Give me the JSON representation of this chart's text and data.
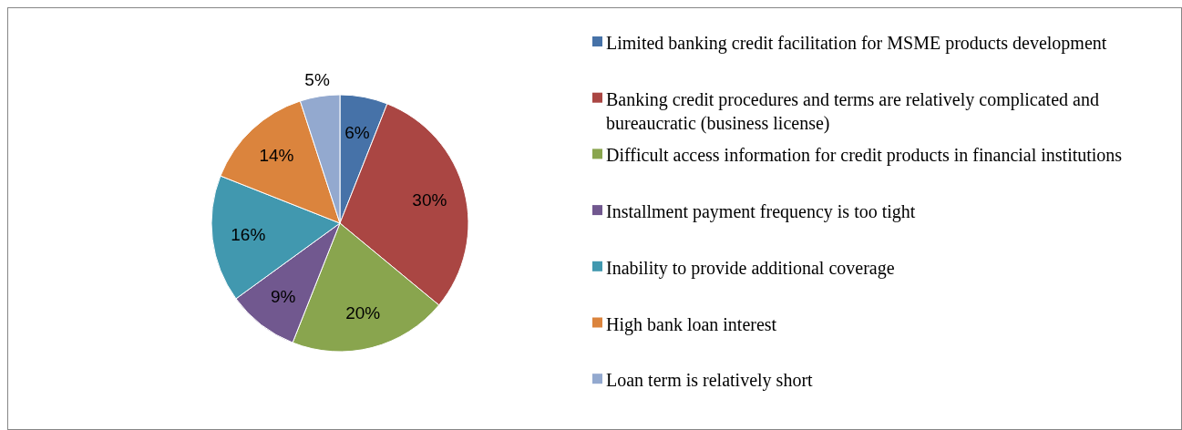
{
  "chart_data": {
    "type": "pie",
    "categories": [
      "Limited banking credit facilitation for MSME products development",
      "Banking credit procedures and terms are relatively complicated and bureaucratic (business license)",
      "Difficult access information for credit products in financial institutions",
      "Installment payment frequency is too tight",
      "Inability to provide additional coverage",
      "High bank loan interest",
      "Loan term is relatively short"
    ],
    "values": [
      6,
      30,
      20,
      9,
      16,
      14,
      5
    ],
    "colors": [
      "#4672a8",
      "#aa4643",
      "#89a54e",
      "#71588f",
      "#4198af",
      "#db843d",
      "#93a9cf"
    ],
    "value_labels": [
      "6%",
      "30%",
      "20%",
      "9%",
      "16%",
      "14%",
      "5%"
    ],
    "legend": "right"
  }
}
